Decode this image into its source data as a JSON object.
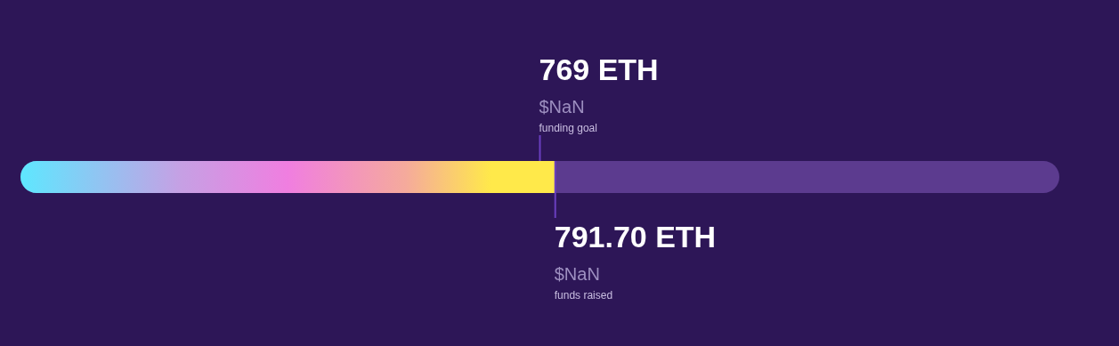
{
  "chart_data": {
    "type": "other",
    "categories": [
      "funding goal",
      "funds raised"
    ],
    "values": [
      769,
      791.7
    ],
    "value_labels": [
      "769 ETH",
      "791.70 ETH"
    ],
    "colors": [
      "#6a3fc0",
      "#ffe94a"
    ],
    "annotations": [
      "$NaN",
      "$NaN"
    ]
  }
}
